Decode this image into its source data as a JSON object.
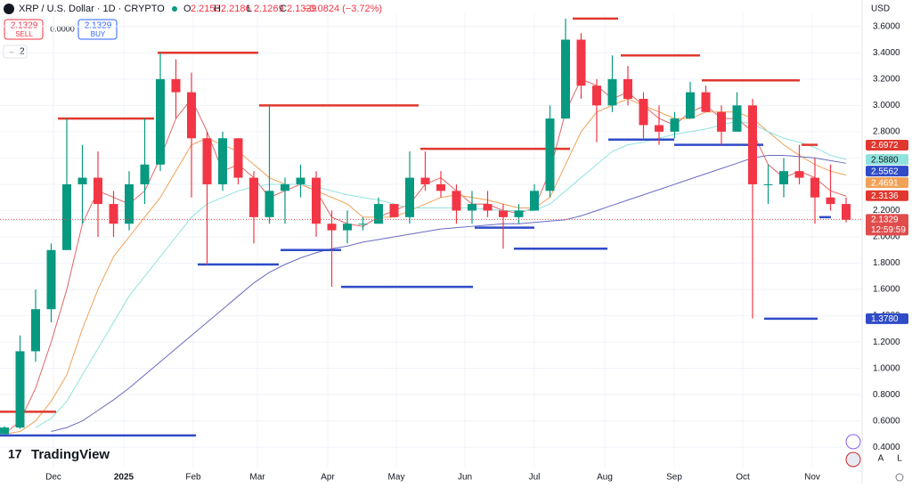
{
  "header": {
    "symbol": "XRP / U.S. Dollar · 1D · CRYPTO",
    "ohlc": [
      {
        "key": "O",
        "value": "2.2153"
      },
      {
        "key": "H",
        "value": "2.2186"
      },
      {
        "key": "L",
        "value": "2.1269"
      },
      {
        "key": "C",
        "value": "2.1329"
      }
    ],
    "change": "−0.0824 (−3.72%)",
    "sell_price": "2.1329",
    "sell_label": "SELL",
    "spread": "0.0000",
    "buy_price": "2.1329",
    "buy_label": "BUY",
    "indicators": "2",
    "currency": "USD"
  },
  "chart_data": {
    "type": "candlestick",
    "categories": [
      null,
      null,
      null,
      null,
      null,
      null,
      null,
      null,
      null,
      null,
      null,
      null,
      null,
      null,
      null,
      null,
      null,
      null,
      null,
      null,
      null,
      null,
      null,
      null,
      null,
      null,
      null,
      null,
      null,
      null,
      null,
      null,
      null,
      null,
      null,
      null,
      null,
      null,
      null,
      null,
      null,
      null,
      null,
      null,
      null,
      null,
      null,
      null,
      null,
      null,
      null,
      null,
      null,
      null,
      null
    ],
    "open": [
      0.5,
      0.55,
      1.13,
      1.45,
      1.9,
      2.4,
      2.45,
      2.25,
      2.1,
      2.4,
      2.55,
      3.2,
      3.1,
      2.75,
      2.4,
      2.75,
      2.45,
      2.15,
      2.35,
      2.4,
      2.45,
      2.1,
      2.05,
      2.1,
      2.1,
      2.25,
      2.15,
      2.45,
      2.4,
      2.35,
      2.2,
      2.25,
      2.2,
      2.15,
      2.2,
      2.35,
      2.9,
      3.5,
      3.15,
      3.0,
      3.2,
      3.05,
      2.85,
      2.8,
      2.9,
      3.1,
      2.95,
      2.8,
      3.0,
      2.4,
      2.4,
      2.5,
      2.45,
      2.3,
      2.25
    ],
    "high": [
      0.56,
      1.25,
      1.6,
      1.95,
      2.9,
      2.7,
      2.65,
      2.35,
      2.5,
      2.9,
      3.4,
      3.35,
      3.25,
      2.8,
      2.8,
      2.75,
      2.5,
      3.0,
      2.45,
      2.55,
      2.5,
      2.2,
      2.2,
      2.15,
      2.3,
      2.25,
      2.65,
      2.65,
      2.5,
      2.4,
      2.35,
      2.35,
      2.25,
      2.25,
      2.4,
      3.0,
      3.66,
      3.55,
      3.2,
      3.38,
      3.3,
      3.1,
      3.0,
      2.95,
      3.18,
      3.15,
      3.0,
      3.1,
      3.05,
      2.55,
      2.6,
      2.7,
      2.6,
      2.55,
      2.3
    ],
    "low": [
      0.5,
      0.54,
      1.05,
      1.35,
      1.9,
      2.1,
      2.0,
      2.0,
      2.05,
      2.25,
      2.5,
      2.9,
      2.3,
      1.79,
      2.35,
      2.4,
      1.95,
      2.1,
      2.1,
      2.3,
      2.0,
      1.62,
      1.95,
      2.05,
      2.1,
      2.15,
      2.1,
      2.35,
      2.3,
      2.1,
      2.1,
      2.15,
      1.91,
      2.1,
      2.2,
      2.3,
      2.9,
      3.05,
      2.72,
      2.95,
      3.0,
      2.75,
      2.7,
      2.75,
      2.9,
      2.95,
      2.7,
      2.8,
      1.38,
      2.25,
      2.3,
      2.4,
      2.1,
      2.2,
      2.11
    ],
    "close": [
      0.55,
      1.13,
      1.45,
      1.9,
      2.4,
      2.45,
      2.25,
      2.1,
      2.4,
      2.55,
      3.2,
      3.1,
      2.75,
      2.4,
      2.75,
      2.45,
      2.15,
      2.35,
      2.4,
      2.45,
      2.1,
      2.05,
      2.1,
      2.1,
      2.25,
      2.15,
      2.45,
      2.4,
      2.35,
      2.2,
      2.25,
      2.2,
      2.15,
      2.2,
      2.35,
      2.9,
      3.5,
      3.15,
      3.0,
      3.2,
      3.05,
      2.85,
      2.8,
      2.9,
      3.1,
      2.95,
      2.8,
      3.0,
      2.4,
      2.4,
      2.5,
      2.45,
      2.3,
      2.25,
      2.13
    ],
    "up_color": "#089981",
    "down_color": "#f23645",
    "ylim": [
      0.3,
      3.7
    ],
    "yticks": [
      {
        "value": 0.4,
        "label": "0.4000"
      },
      {
        "value": 0.6,
        "label": "0.6000"
      },
      {
        "value": 0.8,
        "label": "0.8000"
      },
      {
        "value": 1.0,
        "label": "1.0000"
      },
      {
        "value": 1.2,
        "label": "1.2000"
      },
      {
        "value": 1.4,
        "label": "1.4000"
      },
      {
        "value": 1.6,
        "label": "1.6000"
      },
      {
        "value": 1.8,
        "label": "1.8000"
      },
      {
        "value": 2.0,
        "label": "2.0000"
      },
      {
        "value": 2.2,
        "label": "2.2000"
      },
      {
        "value": 2.4,
        "label": "2.4000"
      },
      {
        "value": 2.6,
        "label": "2.6000"
      },
      {
        "value": 2.8,
        "label": "2.8000"
      },
      {
        "value": 3.0,
        "label": "3.0000"
      },
      {
        "value": 3.2,
        "label": "3.2000"
      },
      {
        "value": 3.4,
        "label": "3.4000"
      },
      {
        "value": 3.6,
        "label": "3.6000"
      }
    ],
    "grid": true,
    "series": [
      {
        "color": "#e06666",
        "values": [
          0.5,
          0.6,
          0.85,
          1.2,
          1.6,
          2.1,
          2.35,
          2.3,
          2.25,
          2.35,
          2.6,
          2.9,
          3.05,
          2.8,
          2.5,
          2.55,
          2.45,
          2.3,
          2.35,
          2.4,
          2.35,
          2.15,
          2.1,
          2.08,
          2.15,
          2.2,
          2.25,
          2.4,
          2.45,
          2.35,
          2.25,
          2.25,
          2.2,
          2.18,
          2.22,
          2.5,
          2.95,
          3.2,
          3.15,
          3.05,
          3.1,
          3.0,
          2.9,
          2.85,
          2.95,
          3.0,
          2.9,
          2.9,
          2.8,
          2.55,
          2.45,
          2.5,
          2.45,
          2.35,
          2.31
        ]
      },
      {
        "color": "#f0a258",
        "values": [
          0.5,
          0.52,
          0.6,
          0.75,
          0.95,
          1.3,
          1.6,
          1.85,
          2.0,
          2.15,
          2.3,
          2.5,
          2.7,
          2.75,
          2.7,
          2.65,
          2.55,
          2.45,
          2.4,
          2.4,
          2.35,
          2.3,
          2.25,
          2.15,
          2.15,
          2.15,
          2.2,
          2.25,
          2.3,
          2.32,
          2.3,
          2.28,
          2.25,
          2.22,
          2.22,
          2.3,
          2.55,
          2.8,
          2.95,
          3.0,
          3.05,
          3.0,
          2.95,
          2.9,
          2.9,
          2.95,
          2.95,
          2.95,
          2.9,
          2.8,
          2.7,
          2.62,
          2.55,
          2.5,
          2.47
        ]
      },
      {
        "color": "#8fe3dc",
        "values": [
          null,
          null,
          0.55,
          0.62,
          0.75,
          0.95,
          1.15,
          1.35,
          1.55,
          1.7,
          1.85,
          2.0,
          2.15,
          2.25,
          2.3,
          2.35,
          2.38,
          2.4,
          2.4,
          2.4,
          2.38,
          2.35,
          2.32,
          2.3,
          2.28,
          2.25,
          2.22,
          2.22,
          2.22,
          2.22,
          2.22,
          2.21,
          2.2,
          2.2,
          2.2,
          2.25,
          2.35,
          2.45,
          2.55,
          2.65,
          2.7,
          2.72,
          2.75,
          2.78,
          2.8,
          2.82,
          2.85,
          2.88,
          2.86,
          2.8,
          2.75,
          2.72,
          2.68,
          2.62,
          2.59
        ]
      },
      {
        "color": "#6a6cc0",
        "values": [
          null,
          null,
          null,
          0.52,
          0.55,
          0.6,
          0.68,
          0.76,
          0.85,
          0.95,
          1.05,
          1.15,
          1.25,
          1.35,
          1.45,
          1.55,
          1.65,
          1.73,
          1.79,
          1.84,
          1.88,
          1.91,
          1.93,
          1.96,
          1.98,
          2.0,
          2.02,
          2.04,
          2.06,
          2.07,
          2.08,
          2.09,
          2.1,
          2.1,
          2.11,
          2.12,
          2.13,
          2.16,
          2.2,
          2.24,
          2.28,
          2.32,
          2.36,
          2.4,
          2.44,
          2.48,
          2.52,
          2.56,
          2.6,
          2.62,
          2.62,
          2.61,
          2.6,
          2.58,
          2.56
        ]
      }
    ],
    "levels": [
      {
        "value": 0.67,
        "color": "#e0382f"
      },
      {
        "value": 0.49,
        "color": "#2f4bc8"
      },
      {
        "value": 2.9,
        "color": "#e0382f"
      },
      {
        "value": 3.4,
        "color": "#e0382f"
      },
      {
        "value": 1.79,
        "color": "#2f4bc8"
      },
      {
        "value": 3.0,
        "color": "#e0382f"
      },
      {
        "value": 1.9,
        "color": "#2f4bc8"
      },
      {
        "value": 1.62,
        "color": "#2f4bc8"
      },
      {
        "value": 2.67,
        "color": "#e0382f"
      },
      {
        "value": 2.07,
        "color": "#2f4bc8"
      },
      {
        "value": 1.91,
        "color": "#2f4bc8"
      },
      {
        "value": 3.66,
        "color": "#e0382f"
      },
      {
        "value": 3.38,
        "color": "#e0382f"
      },
      {
        "value": 2.74,
        "color": "#2f4bc8"
      },
      {
        "value": 2.7,
        "color": "#2f4bc8"
      },
      {
        "value": 3.19,
        "color": "#e0382f"
      },
      {
        "value": 1.378,
        "color": "#2f4bc8"
      },
      {
        "value": 2.7,
        "color": "#e0382f"
      },
      {
        "value": 2.15,
        "color": "#2f4bc8"
      }
    ],
    "price_tags": [
      {
        "value": 2.6972,
        "color": "#e0382f"
      },
      {
        "value": 2.588,
        "label": "2.5880",
        "color": "#8fe3dc"
      },
      {
        "value": 2.5562,
        "color": "#2f4bc8"
      },
      {
        "value": 2.4691,
        "color": "#f0a258"
      },
      {
        "value": 2.3136,
        "color": "#e0382f"
      },
      {
        "value": 2.1329,
        "color": "#e04c4c",
        "countdown": "12:59:59"
      },
      {
        "value": 1.378,
        "label": "1.3780",
        "color": "#2f4bc8"
      }
    ],
    "x_labels": [
      "Dec",
      "2025",
      "Feb",
      "Mar",
      "Apr",
      "May",
      "Jun",
      "Jul",
      "Aug",
      "Sep",
      "Oct",
      "Nov"
    ]
  },
  "footer": {
    "brand": "TradingView",
    "buttons": [
      "A",
      "L"
    ]
  }
}
